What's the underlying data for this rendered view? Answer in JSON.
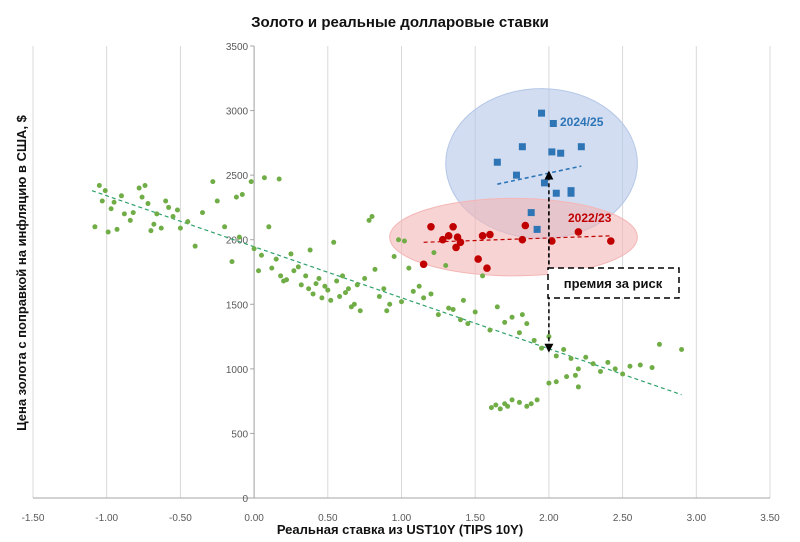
{
  "chart_data": {
    "type": "scatter",
    "title": "Золото и реальные долларовые ставки",
    "xlabel": "Реальная ставка из UST10Y (TIPS 10Y)",
    "ylabel": "Цена золота с поправкой на инфляцию в США, $",
    "xlim": [
      -1.5,
      3.5
    ],
    "ylim": [
      0,
      3500
    ],
    "xticks": [
      "-1.50",
      "-1.00",
      "-0.50",
      "0.00",
      "0.50",
      "1.00",
      "1.50",
      "2.00",
      "2.50",
      "3.00",
      "3.50"
    ],
    "yticks": [
      "0",
      "500",
      "1000",
      "1500",
      "2000",
      "2500",
      "3000",
      "3500"
    ],
    "grid": "vertical",
    "colors": {
      "history": "#70AD47",
      "y2022": "#C00000",
      "y2024": "#2E75B6",
      "ellipse2022": "#F4B6B6",
      "ellipse2024": "#B4C7E7"
    },
    "series": [
      {
        "key": "history",
        "color": "#70AD47",
        "marker": "circle",
        "points": [
          [
            -1.08,
            2100
          ],
          [
            -1.05,
            2420
          ],
          [
            -1.03,
            2300
          ],
          [
            -1.01,
            2380
          ],
          [
            -0.99,
            2060
          ],
          [
            -0.97,
            2240
          ],
          [
            -0.95,
            2290
          ],
          [
            -0.93,
            2080
          ],
          [
            -0.9,
            2340
          ],
          [
            -0.88,
            2200
          ],
          [
            -0.84,
            2150
          ],
          [
            -0.82,
            2210
          ],
          [
            -0.78,
            2400
          ],
          [
            -0.76,
            2330
          ],
          [
            -0.74,
            2420
          ],
          [
            -0.72,
            2280
          ],
          [
            -0.7,
            2070
          ],
          [
            -0.68,
            2120
          ],
          [
            -0.66,
            2200
          ],
          [
            -0.63,
            2090
          ],
          [
            -0.6,
            2300
          ],
          [
            -0.58,
            2250
          ],
          [
            -0.55,
            2180
          ],
          [
            -0.52,
            2230
          ],
          [
            -0.5,
            2090
          ],
          [
            -0.45,
            2140
          ],
          [
            -0.4,
            1950
          ],
          [
            -0.35,
            2210
          ],
          [
            -0.28,
            2450
          ],
          [
            -0.25,
            2300
          ],
          [
            -0.2,
            2100
          ],
          [
            -0.15,
            1830
          ],
          [
            -0.12,
            2330
          ],
          [
            -0.1,
            2020
          ],
          [
            -0.08,
            2350
          ],
          [
            -0.02,
            2450
          ],
          [
            0.0,
            1930
          ],
          [
            0.03,
            1760
          ],
          [
            0.05,
            1880
          ],
          [
            0.07,
            2480
          ],
          [
            0.1,
            2100
          ],
          [
            0.12,
            1780
          ],
          [
            0.15,
            1850
          ],
          [
            0.17,
            2470
          ],
          [
            0.18,
            1720
          ],
          [
            0.2,
            1680
          ],
          [
            0.22,
            1690
          ],
          [
            0.25,
            1890
          ],
          [
            0.27,
            1760
          ],
          [
            0.3,
            1790
          ],
          [
            0.32,
            1650
          ],
          [
            0.35,
            1720
          ],
          [
            0.37,
            1620
          ],
          [
            0.38,
            1920
          ],
          [
            0.4,
            1580
          ],
          [
            0.42,
            1660
          ],
          [
            0.44,
            1700
          ],
          [
            0.46,
            1550
          ],
          [
            0.48,
            1640
          ],
          [
            0.5,
            1610
          ],
          [
            0.52,
            1530
          ],
          [
            0.54,
            1980
          ],
          [
            0.56,
            1680
          ],
          [
            0.58,
            1560
          ],
          [
            0.6,
            1720
          ],
          [
            0.62,
            1590
          ],
          [
            0.64,
            1620
          ],
          [
            0.66,
            1480
          ],
          [
            0.68,
            1500
          ],
          [
            0.7,
            1650
          ],
          [
            0.72,
            1450
          ],
          [
            0.75,
            1700
          ],
          [
            0.78,
            2150
          ],
          [
            0.8,
            2180
          ],
          [
            0.82,
            1770
          ],
          [
            0.85,
            1560
          ],
          [
            0.88,
            1620
          ],
          [
            0.9,
            1450
          ],
          [
            0.92,
            1500
          ],
          [
            0.95,
            1870
          ],
          [
            0.98,
            2000
          ],
          [
            1.0,
            1520
          ],
          [
            1.02,
            1990
          ],
          [
            1.05,
            1780
          ],
          [
            1.08,
            1600
          ],
          [
            1.12,
            1640
          ],
          [
            1.15,
            1550
          ],
          [
            1.2,
            1580
          ],
          [
            1.22,
            1900
          ],
          [
            1.25,
            1420
          ],
          [
            1.3,
            1800
          ],
          [
            1.32,
            1470
          ],
          [
            1.35,
            1460
          ],
          [
            1.4,
            1380
          ],
          [
            1.42,
            1530
          ],
          [
            1.45,
            1350
          ],
          [
            1.5,
            1440
          ],
          [
            1.55,
            1720
          ],
          [
            1.6,
            1300
          ],
          [
            1.65,
            1480
          ],
          [
            1.7,
            1360
          ],
          [
            1.75,
            1400
          ],
          [
            1.8,
            1280
          ],
          [
            1.82,
            1420
          ],
          [
            1.85,
            1350
          ],
          [
            1.9,
            1220
          ],
          [
            1.95,
            1160
          ],
          [
            2.0,
            1250
          ],
          [
            2.05,
            1100
          ],
          [
            2.1,
            1150
          ],
          [
            2.15,
            1080
          ],
          [
            2.2,
            1000
          ],
          [
            2.25,
            1090
          ],
          [
            2.3,
            1040
          ],
          [
            2.35,
            980
          ],
          [
            2.4,
            1050
          ],
          [
            2.45,
            1000
          ],
          [
            2.5,
            960
          ],
          [
            2.55,
            1020
          ],
          [
            2.62,
            1030
          ],
          [
            2.7,
            1010
          ],
          [
            2.75,
            1190
          ],
          [
            2.9,
            1150
          ],
          [
            1.61,
            700
          ],
          [
            1.64,
            720
          ],
          [
            1.67,
            690
          ],
          [
            1.7,
            730
          ],
          [
            1.72,
            710
          ],
          [
            1.75,
            760
          ],
          [
            1.8,
            740
          ],
          [
            1.85,
            710
          ],
          [
            1.88,
            730
          ],
          [
            1.92,
            760
          ],
          [
            2.0,
            890
          ],
          [
            2.05,
            900
          ],
          [
            2.12,
            940
          ],
          [
            2.18,
            950
          ],
          [
            2.2,
            860
          ]
        ]
      },
      {
        "key": "y2022",
        "name": "2022/23",
        "color": "#C00000",
        "marker": "circle",
        "points": [
          [
            1.15,
            1810
          ],
          [
            1.2,
            2100
          ],
          [
            1.28,
            2000
          ],
          [
            1.32,
            2030
          ],
          [
            1.35,
            2100
          ],
          [
            1.37,
            1940
          ],
          [
            1.38,
            2020
          ],
          [
            1.4,
            1980
          ],
          [
            1.52,
            1850
          ],
          [
            1.55,
            2030
          ],
          [
            1.58,
            1780
          ],
          [
            1.6,
            2040
          ],
          [
            1.82,
            2000
          ],
          [
            1.84,
            2110
          ],
          [
            2.02,
            1990
          ],
          [
            2.2,
            2060
          ],
          [
            2.42,
            1990
          ]
        ]
      },
      {
        "key": "y2024",
        "name": "2024/25",
        "color": "#2E75B6",
        "marker": "square",
        "points": [
          [
            1.65,
            2600
          ],
          [
            1.78,
            2500
          ],
          [
            1.82,
            2720
          ],
          [
            1.88,
            2210
          ],
          [
            1.92,
            2080
          ],
          [
            1.95,
            2980
          ],
          [
            1.97,
            2440
          ],
          [
            2.02,
            2680
          ],
          [
            2.03,
            2900
          ],
          [
            2.05,
            2360
          ],
          [
            2.08,
            2670
          ],
          [
            2.15,
            2380
          ],
          [
            2.22,
            2720
          ],
          [
            2.15,
            2360
          ]
        ]
      }
    ],
    "trendlines": [
      {
        "series": "history",
        "color": "#2EA06A",
        "from": [
          -1.1,
          2380
        ],
        "to": [
          2.9,
          800
        ]
      },
      {
        "series": "y2022",
        "color": "#C00000",
        "from": [
          1.15,
          1980
        ],
        "to": [
          2.42,
          2030
        ]
      },
      {
        "series": "y2024",
        "color": "#2E75B6",
        "from": [
          1.65,
          2430
        ],
        "to": [
          2.22,
          2570
        ]
      }
    ],
    "ellipses": [
      {
        "series": "y2024",
        "cx": 1.95,
        "cy": 2590,
        "rx": 0.65,
        "ry": 580,
        "color": "#B4C7E7"
      },
      {
        "series": "y2022",
        "cx": 1.76,
        "cy": 2020,
        "rx": 0.84,
        "ry": 300,
        "color": "#F4B6B6"
      }
    ],
    "annotations": [
      {
        "text": "2024/25",
        "color": "#2E75B6"
      },
      {
        "text": "2022/23",
        "color": "#C00000"
      },
      {
        "text": "премия за риск",
        "color": "#111111"
      }
    ],
    "premium_arrow": {
      "x": 2.0,
      "y_from": 1160,
      "y_to": 2500
    },
    "premium_guide": {
      "x": 2.0,
      "y_from": 1700,
      "y_to": 2350
    }
  }
}
